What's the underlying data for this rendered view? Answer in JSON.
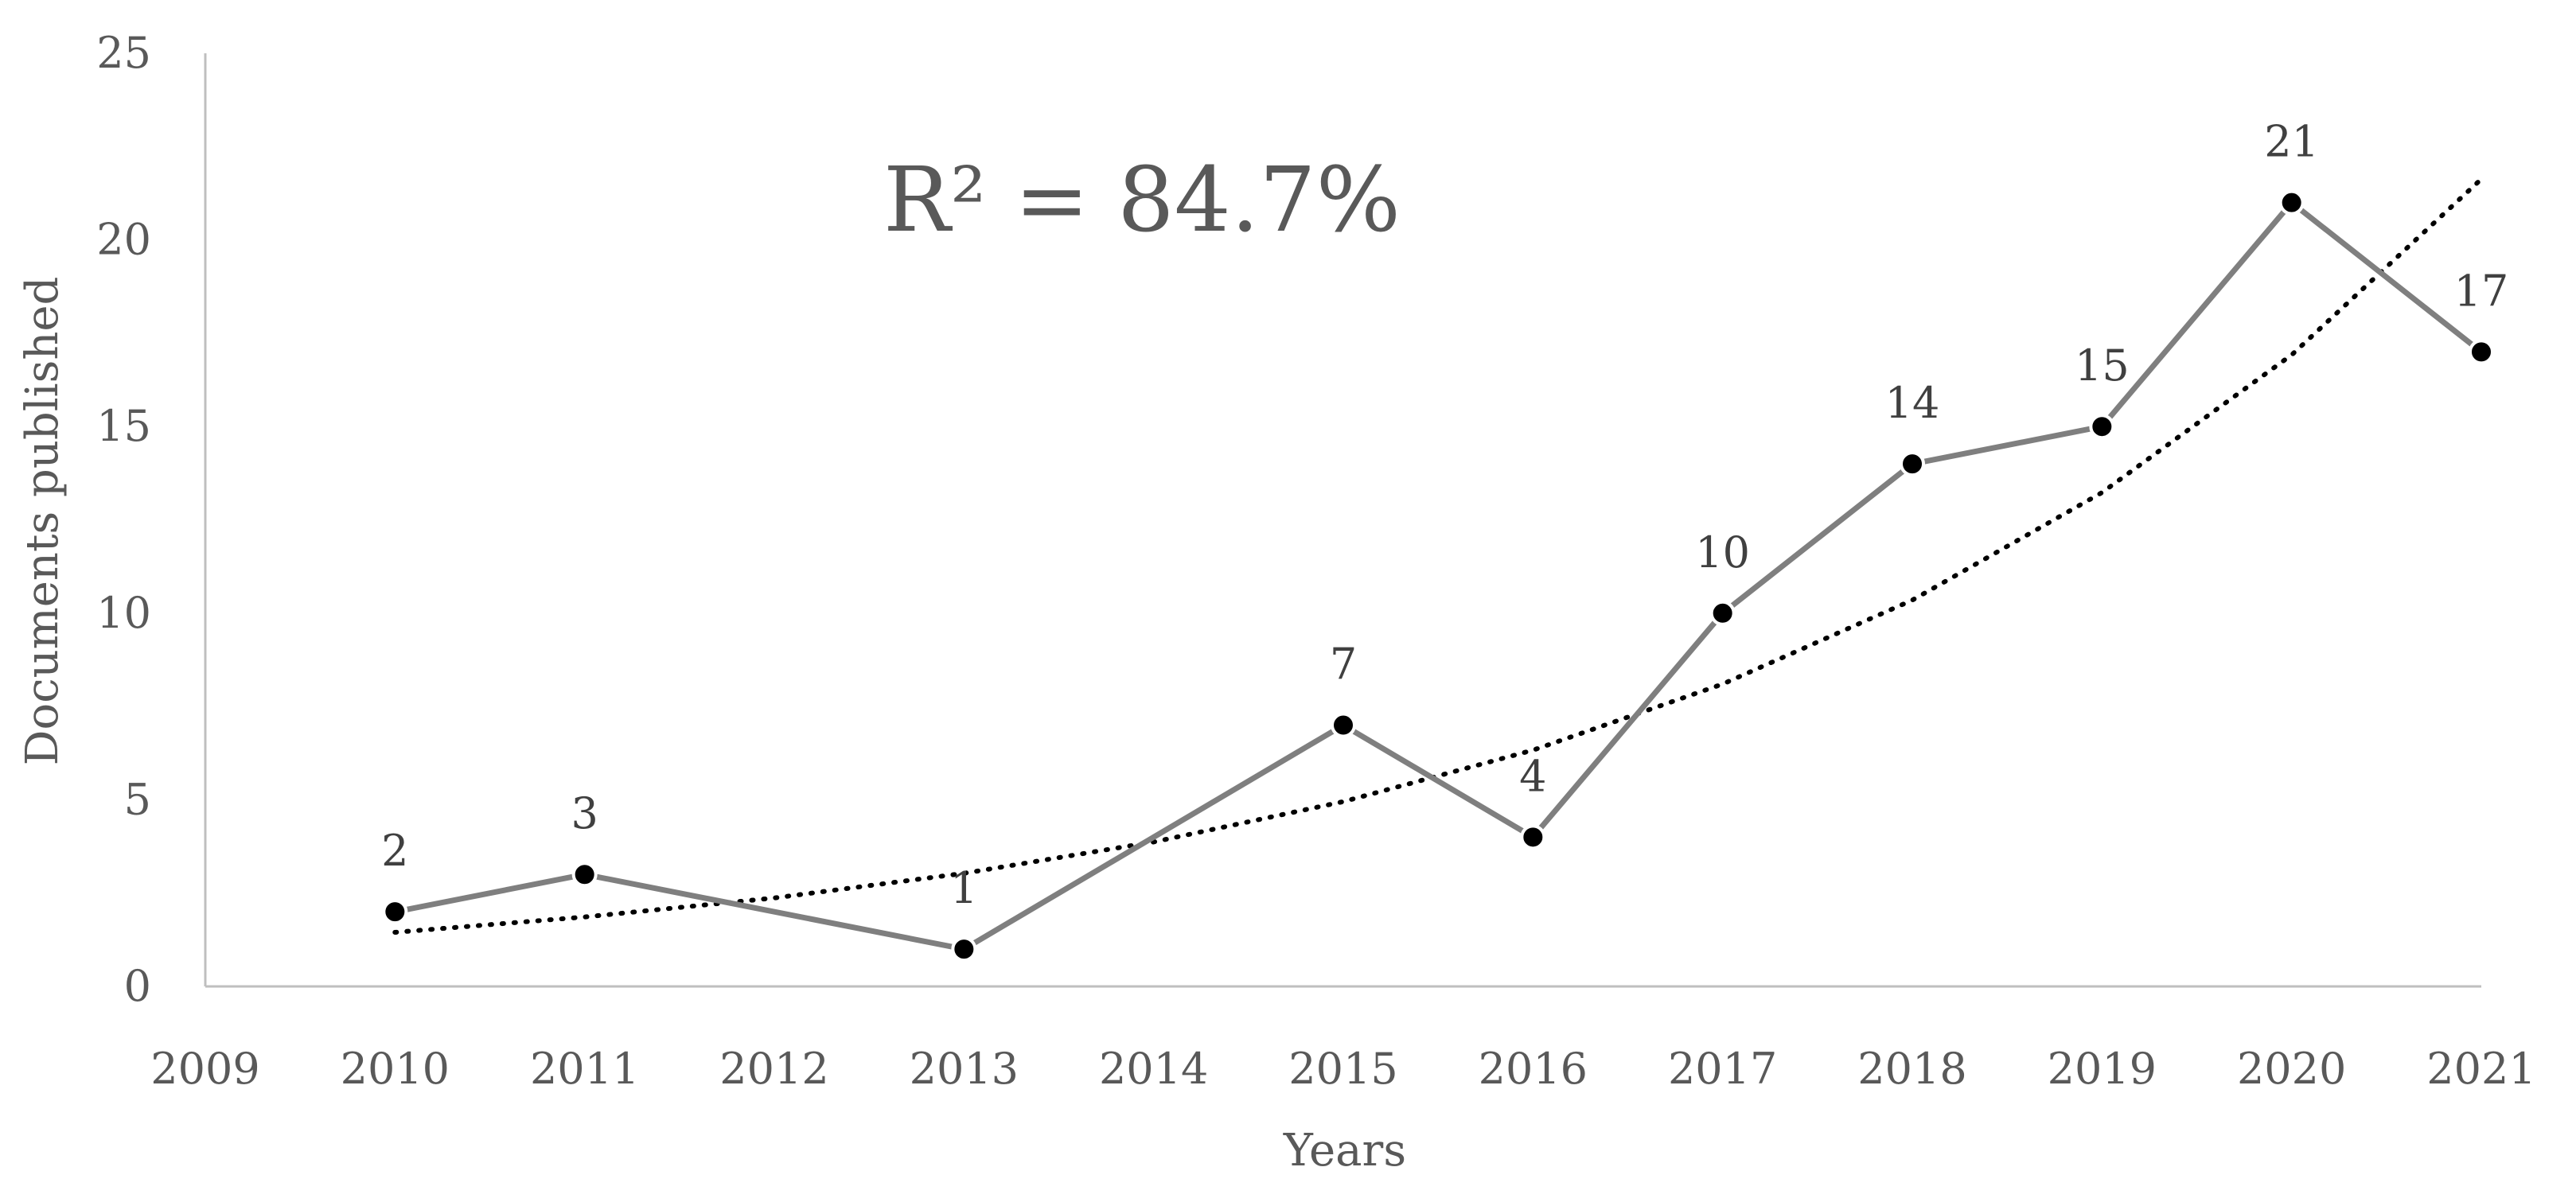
{
  "chart_data": {
    "type": "line",
    "title": "",
    "xlabel": "Years",
    "ylabel": "Documents published",
    "annotation": "R² = 84.7%",
    "x_ticks": [
      "2009",
      "2010",
      "2011",
      "2012",
      "2013",
      "2014",
      "2015",
      "2016",
      "2017",
      "2018",
      "2019",
      "2020",
      "2021"
    ],
    "y_ticks": [
      "0",
      "5",
      "10",
      "15",
      "20",
      "25"
    ],
    "xlim": [
      2009,
      2021
    ],
    "ylim": [
      0,
      25
    ],
    "grid": false,
    "legend": "none",
    "series": [
      {
        "x": [
          2010,
          2011,
          2013,
          2015,
          2016,
          2017,
          2018,
          2019,
          2020,
          2021
        ],
        "values": [
          2,
          3,
          1,
          7,
          4,
          10,
          14,
          15,
          21,
          17
        ],
        "data_labels": [
          "2",
          "3",
          "1",
          "7",
          "4",
          "10",
          "14",
          "15",
          "21",
          "17"
        ],
        "color": "#7f7f7f",
        "marker_color": "#000000"
      }
    ],
    "trendline": {
      "type": "exponential",
      "style": "dotted",
      "color": "#000000",
      "x": [
        2010,
        2011,
        2012,
        2013,
        2014,
        2015,
        2016,
        2017,
        2018,
        2019,
        2020,
        2021
      ],
      "values": [
        1.45,
        1.86,
        2.37,
        3.03,
        3.87,
        4.95,
        6.33,
        8.1,
        10.35,
        13.23,
        16.92,
        21.63
      ]
    }
  }
}
